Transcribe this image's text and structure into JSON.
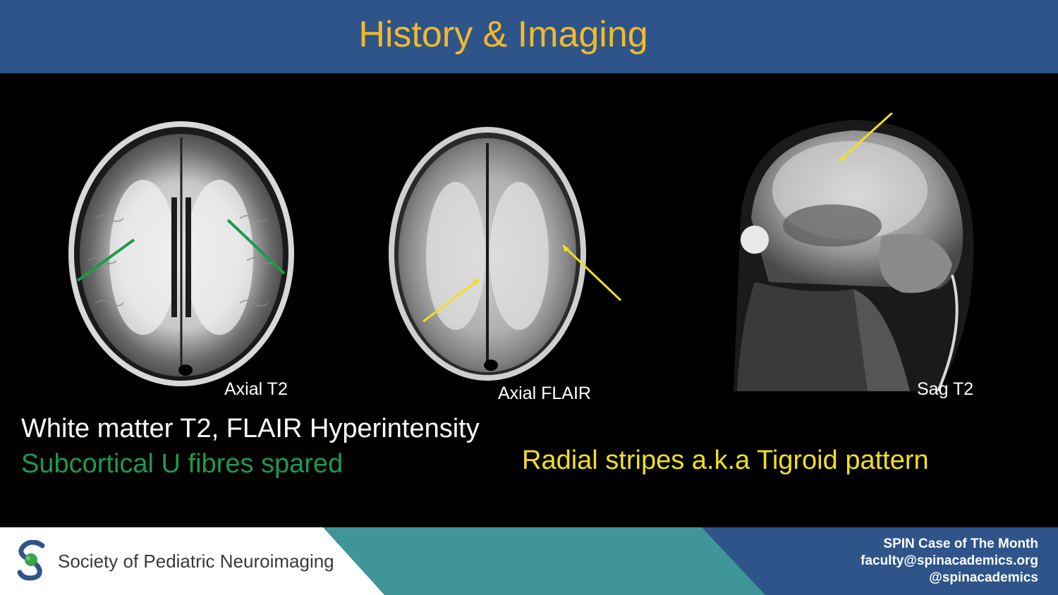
{
  "slide": {
    "title": "History & Imaging"
  },
  "images": [
    {
      "label": "Axial T2"
    },
    {
      "label": "Axial FLAIR"
    },
    {
      "label": "Sag T2"
    }
  ],
  "findings": {
    "line1": "White matter T2, FLAIR Hyperintensity",
    "line2": "Subcortical U fibres spared",
    "line3": "Radial stripes a.k.a Tigroid pattern"
  },
  "colors": {
    "header_bg": "#2e5489",
    "title": "#f2b92b",
    "green_arrow": "#1e9a4a",
    "yellow_arrow": "#f0e020",
    "footer_teal": "#3f9598",
    "footer_blue": "#2e5489"
  },
  "footer": {
    "org_name": "Society of Pediatric Neuroimaging",
    "case_line": "SPIN Case of The Month",
    "email": "faculty@spinacademics.org",
    "handle": "@spinacademics"
  }
}
